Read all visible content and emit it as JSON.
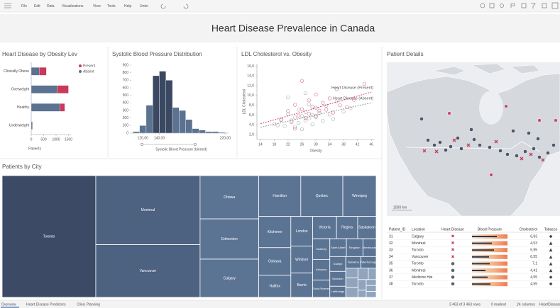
{
  "toolbar": {
    "menu": [
      "File",
      "Edit",
      "Data",
      "Visualizations",
      "View",
      "Tools",
      "Help",
      "Undo"
    ]
  },
  "header": {
    "title": "Heart Disease Prevalence in Canada"
  },
  "chart_data": [
    {
      "type": "bar",
      "orientation": "horizontal",
      "stacked": true,
      "title": "Heart Disease by Obesity Lev",
      "categories": [
        "Clinically Obese",
        "Overweight",
        "Healthy",
        "Underweight"
      ],
      "series": [
        {
          "name": "Absent",
          "color": "#5b7291",
          "values": [
            320,
            1050,
            1150,
            50
          ]
        },
        {
          "name": "Present",
          "color": "#c8395a",
          "values": [
            290,
            450,
            200,
            10
          ]
        }
      ],
      "xlim": [
        0,
        1600
      ],
      "xticks": [
        0,
        500,
        1000,
        1500
      ],
      "x_label": "Patients"
    },
    {
      "type": "histogram",
      "title": "Systolic Blood Pressure Distribution",
      "bins": [
        108,
        116,
        124,
        132,
        140,
        148,
        156,
        164,
        172,
        180,
        188,
        196,
        204,
        212,
        220
      ],
      "counts": [
        20,
        100,
        370,
        760,
        820,
        700,
        340,
        300,
        180,
        60,
        40,
        20,
        20,
        10
      ],
      "colors": [
        "#5b7291",
        "#5b7291",
        "#5b7291",
        "#3b4862",
        "#3b4862",
        "#3b4862",
        "#5b7291",
        "#5b7291",
        "#5b7291",
        "#5b7291",
        "#5b7291",
        "#5b7291",
        "#5b7291",
        "#5b7291"
      ],
      "xlim": [
        106,
        224
      ],
      "xticks": [
        {
          "value": 120,
          "label": "120,00"
        },
        {
          "value": 140,
          "label": "140,00"
        },
        {
          "value": 220,
          "label": "220,00"
        }
      ],
      "ylim": [
        0,
        900
      ],
      "yticks": [
        0,
        100,
        200,
        300,
        400,
        500,
        600,
        700,
        800,
        900
      ],
      "x_label": "Systolic Blood Pressure (binned)"
    },
    {
      "type": "scatter",
      "title": "LDL Cholesterol vs. Obesity",
      "x_label": "Obesity",
      "y_label": "LDL Cholesterol",
      "xlim": [
        13,
        47
      ],
      "xticks": [
        14,
        18,
        22,
        26,
        30,
        34,
        38,
        42,
        46
      ],
      "ylim": [
        1,
        16.5
      ],
      "yticks": [
        {
          "value": 2,
          "label": "2,0"
        },
        {
          "value": 4,
          "label": "4,0"
        },
        {
          "value": 6,
          "label": "6,0"
        },
        {
          "value": 8,
          "label": "8,0"
        },
        {
          "value": 10,
          "label": "10,0"
        },
        {
          "value": 12,
          "label": "12,0"
        },
        {
          "value": 14,
          "label": "14,0"
        },
        {
          "value": 16,
          "label": "16,0"
        }
      ],
      "series": [
        {
          "name": "Heart Disease (Absent)",
          "color": "#8a8f99",
          "x": [
            18,
            20,
            21,
            22,
            23,
            24,
            24,
            25,
            25,
            26,
            26,
            27,
            27,
            28,
            28,
            29,
            29,
            30,
            30,
            31,
            32,
            33,
            34,
            35,
            36,
            38,
            40,
            19,
            22,
            27
          ],
          "values": [
            4.2,
            5.1,
            3.8,
            6.2,
            4.9,
            5.5,
            3.6,
            7.1,
            4.4,
            5.8,
            3.1,
            6.6,
            4.9,
            8.2,
            5.3,
            6.0,
            4.1,
            7.5,
            5.6,
            6.4,
            4.8,
            7.9,
            6.1,
            5.2,
            8.8,
            6.7,
            7.4,
            3.9,
            9.6,
            10.5
          ],
          "trend_x": [
            14,
            46
          ],
          "trend_y": [
            3.5,
            8.5
          ]
        },
        {
          "name": "Heart Disease (Present)",
          "color": "#c8395a",
          "x": [
            20,
            22,
            23,
            24,
            25,
            26,
            27,
            28,
            28,
            29,
            30,
            30,
            31,
            32,
            33,
            34,
            35,
            36,
            37,
            39,
            41,
            44,
            26,
            24
          ],
          "values": [
            5.0,
            6.8,
            4.6,
            8.1,
            5.9,
            7.2,
            5.4,
            9.0,
            6.3,
            7.7,
            5.8,
            10.2,
            6.9,
            8.5,
            7.1,
            9.4,
            6.5,
            11.3,
            8.0,
            7.6,
            9.1,
            12.4,
            13.0,
            3.2
          ],
          "trend_x": [
            14,
            46
          ],
          "trend_y": [
            4.2,
            10.7
          ]
        }
      ]
    },
    {
      "type": "treemap",
      "title": "Patients by City",
      "categories": [
        "Toronto",
        "Montreal",
        "Vancouver",
        "Ottawa",
        "Edmonton",
        "Calgary",
        "Hamilton",
        "Quebec",
        "Winnipeg",
        "Kitchener",
        "Oshawa",
        "Halifax",
        "London",
        "Windsor",
        "Barrie",
        "Victoria",
        "Regina",
        "Saskatoon",
        "Sudbury",
        "Kelowna",
        "Trois Rivieres",
        "Saint Albert",
        "Kingston",
        "Sherbrooke",
        "Guelph",
        "Moncton",
        "Lethbridge",
        "Nanaimo",
        "Peterborough",
        null,
        null,
        null,
        null,
        null,
        null,
        null,
        null,
        null,
        null
      ],
      "values": [
        193,
        122,
        93,
        43,
        40,
        38,
        29,
        29,
        23,
        17,
        15,
        12,
        11,
        10,
        9,
        9,
        8,
        7,
        6,
        6,
        5,
        5,
        5,
        4,
        4,
        4,
        3,
        3,
        3,
        2,
        2,
        2,
        2,
        1.5,
        1.5,
        1,
        1,
        1,
        1
      ]
    }
  ],
  "patient_details": {
    "title": "Patient Details",
    "map": {
      "scale_label": "1000 km"
    },
    "table": {
      "columns": [
        "Patient_ID",
        "Location",
        "Heart Disease",
        "Blood Pressure",
        "Cholesterol",
        "Tobacco"
      ],
      "rows": [
        [
          "31",
          "Calgary",
          "✖",
          "6,93",
          "◆"
        ],
        [
          "32",
          "Montreal",
          "✖",
          "4,53",
          "▲"
        ],
        [
          "33",
          "Toronto",
          "✖",
          "5,95",
          "▲"
        ],
        [
          "34",
          "Vancouver",
          "✖",
          "6,55",
          "▲"
        ],
        [
          "35",
          "Toronto",
          "●",
          "7,1",
          "▲"
        ],
        [
          "36",
          "Montreal",
          "●",
          "4,41",
          "▲"
        ],
        [
          "37",
          "Medicine Hat",
          "●",
          "4,55",
          "◆"
        ],
        [
          "38",
          "Toronto",
          "●",
          "4,55",
          "◆"
        ]
      ]
    },
    "heart_disease_colors": [
      "#c8395a",
      "#c8395a",
      "#c8395a",
      "#c8395a",
      "#5a6270",
      "#5a6270",
      "#5a6270",
      "#5a6270"
    ],
    "blood_pressure": [
      150,
      136,
      142,
      128,
      130,
      118,
      124,
      132
    ],
    "blood_pressure_range": [
      80,
      180
    ]
  },
  "tabs": [
    "Overview",
    "Heart Disease Predictors",
    "Clinic Planning"
  ],
  "status": [
    "3 463 of 3 463 rows",
    "0 marked",
    "24 columns",
    "HeartDisease"
  ]
}
